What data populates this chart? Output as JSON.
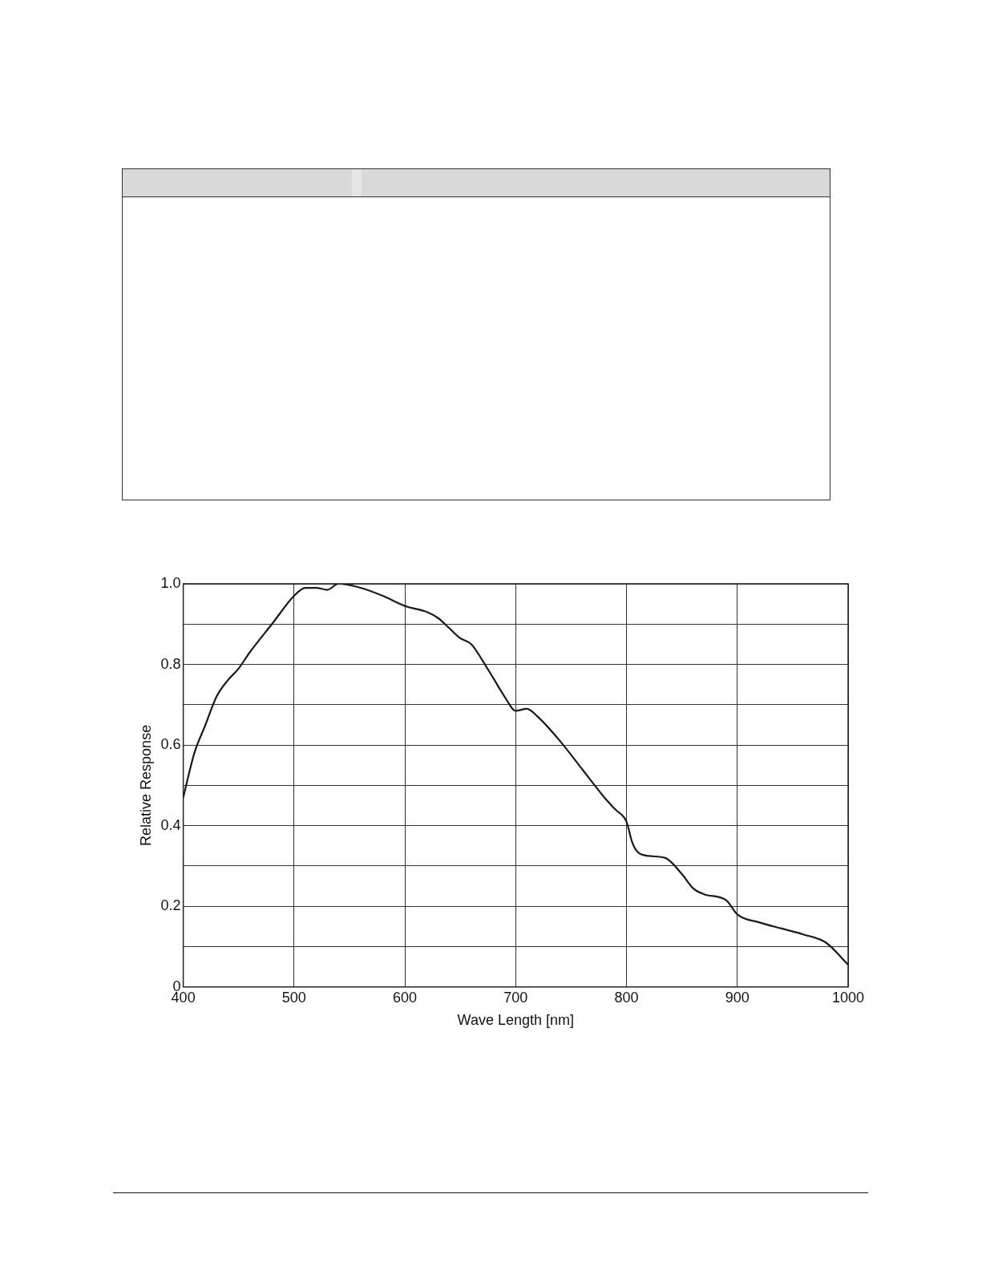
{
  "chart_data": {
    "type": "line",
    "xlabel": "Wave Length [nm]",
    "ylabel": "Relative Response",
    "series": [
      {
        "color": "#1a1a1a",
        "x": [
          400,
          410,
          420,
          430,
          440,
          450,
          460,
          480,
          500,
          510,
          520,
          530,
          540,
          560,
          580,
          600,
          620,
          630,
          640,
          650,
          660,
          670,
          680,
          690,
          700,
          710,
          720,
          740,
          760,
          780,
          790,
          800,
          805,
          810,
          820,
          835,
          850,
          860,
          870,
          890,
          900,
          920,
          940,
          960,
          980,
          1000
        ],
        "values": [
          0.47,
          0.58,
          0.65,
          0.72,
          0.76,
          0.79,
          0.83,
          0.9,
          0.97,
          0.99,
          0.99,
          0.985,
          1.0,
          0.99,
          0.97,
          0.945,
          0.93,
          0.915,
          0.89,
          0.865,
          0.85,
          0.81,
          0.765,
          0.72,
          0.685,
          0.69,
          0.67,
          0.61,
          0.54,
          0.47,
          0.44,
          0.41,
          0.36,
          0.335,
          0.325,
          0.32,
          0.28,
          0.245,
          0.23,
          0.215,
          0.18,
          0.16,
          0.145,
          0.13,
          0.11,
          0.055
        ]
      }
    ],
    "xlim": [
      400,
      1000
    ],
    "xticks": [
      400,
      500,
      600,
      700,
      800,
      900,
      1000
    ],
    "ylim": [
      0,
      1
    ],
    "yticks": [
      0,
      {
        "value": 0.1,
        "label": null
      },
      0.2,
      {
        "value": 0.3,
        "label": null
      },
      0.4,
      {
        "value": 0.5,
        "label": null
      },
      0.6,
      {
        "value": 0.7,
        "label": null
      },
      0.8,
      {
        "value": 0.9,
        "label": null
      },
      {
        "value": 1,
        "label": "1.0"
      }
    ],
    "grid": true,
    "legend": false,
    "marker": "none",
    "line_style": "solid"
  }
}
